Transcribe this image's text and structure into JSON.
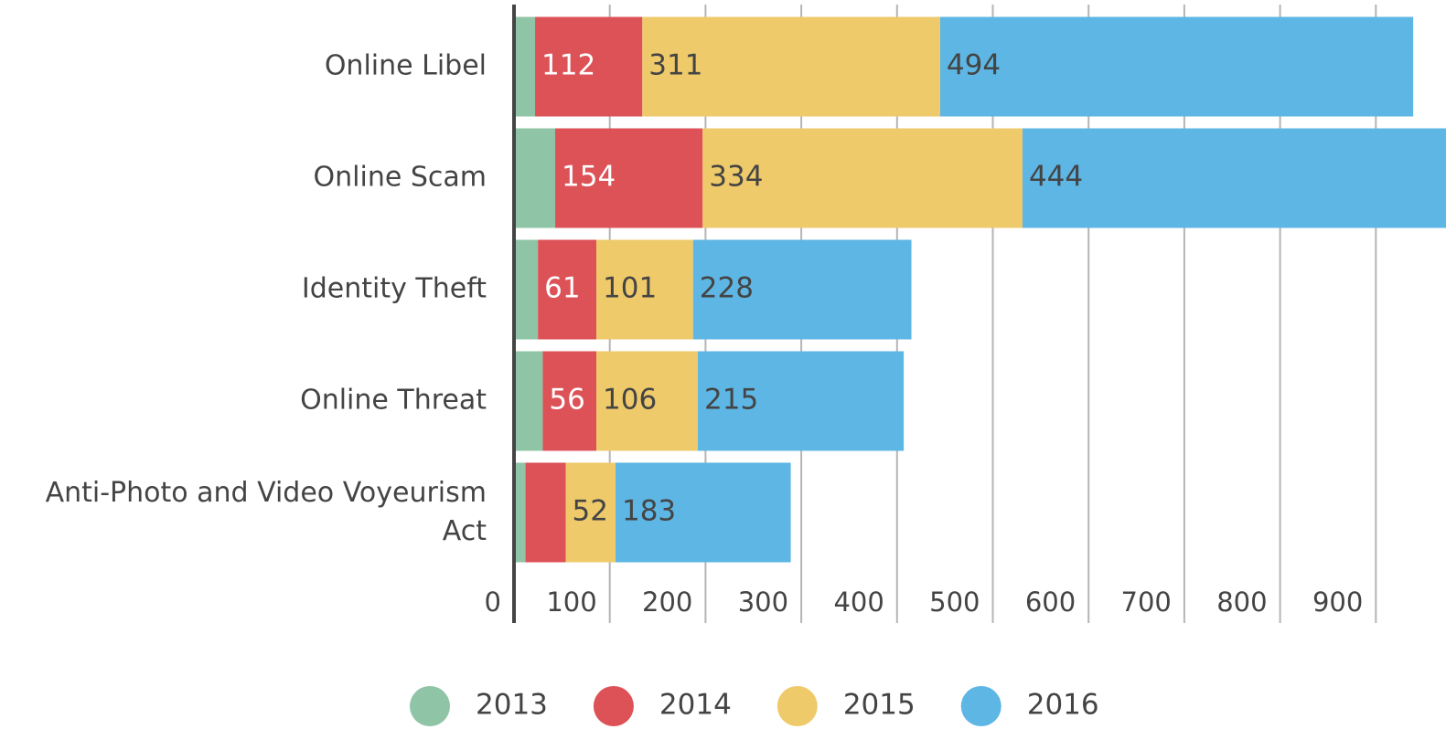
{
  "chart_data": {
    "type": "stacked_barh",
    "categories": [
      "Online Libel",
      "Online Scam",
      "Identity Theft",
      "Online Threat",
      "Anti-Photo and Video Voyeurism Act"
    ],
    "series": [
      {
        "name": "2013",
        "color": "#8fc4a6",
        "values": [
          22,
          43,
          25,
          30,
          12
        ]
      },
      {
        "name": "2014",
        "color": "#dc5257",
        "label_color": "#ffffff",
        "values": [
          112,
          154,
          61,
          56,
          42
        ],
        "value_labels": [
          "112",
          "154",
          "61",
          "56",
          null
        ]
      },
      {
        "name": "2015",
        "color": "#efca6b",
        "label_color": "#444444",
        "values": [
          311,
          334,
          101,
          106,
          52
        ],
        "value_labels": [
          "311",
          "334",
          "101",
          "106",
          "52"
        ]
      },
      {
        "name": "2016",
        "color": "#5eb6e4",
        "label_color": "#444444",
        "values": [
          494,
          444,
          228,
          215,
          183
        ],
        "value_labels": [
          "494",
          "444",
          "228",
          "215",
          "183"
        ]
      }
    ],
    "xlim": [
      0,
      1000
    ],
    "xticks": [
      0,
      100,
      200,
      300,
      400,
      500,
      600,
      700,
      800,
      900
    ],
    "grid": true,
    "legend": "bottom"
  }
}
